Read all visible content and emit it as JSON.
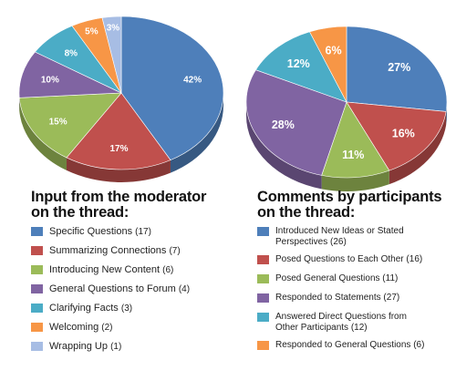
{
  "chart_data": [
    {
      "type": "pie",
      "title": "Input from the moderator\non the thread:",
      "legend_placement": "below",
      "slices": [
        {
          "label": "Specific Questions",
          "count": 17,
          "percent_label": "42%",
          "value": 42,
          "color": "#4e7fba"
        },
        {
          "label": "Summarizing Connections",
          "count": 7,
          "percent_label": "17%",
          "value": 17,
          "color": "#c0504d"
        },
        {
          "label": "Introducing New Content",
          "count": 6,
          "percent_label": "15%",
          "value": 15,
          "color": "#9bbb59"
        },
        {
          "label": "General Questions to Forum",
          "count": 4,
          "percent_label": "10%",
          "value": 10,
          "color": "#8064a2"
        },
        {
          "label": "Clarifying Facts",
          "count": 3,
          "percent_label": "8%",
          "value": 8,
          "color": "#4bacc6"
        },
        {
          "label": "Welcoming",
          "count": 2,
          "percent_label": "5%",
          "value": 5,
          "color": "#f79646"
        },
        {
          "label": "Wrapping Up",
          "count": 1,
          "percent_label": "3%",
          "value": 3,
          "color": "#a7bde4"
        }
      ]
    },
    {
      "type": "pie",
      "title": "Comments by participants\non the thread:",
      "legend_placement": "below",
      "slices": [
        {
          "label": "Introduced New Ideas or Stated\nPerspectives",
          "count": 26,
          "percent_label": "27%",
          "value": 27,
          "color": "#4e7fba"
        },
        {
          "label": "Posed Questions to Each Other",
          "count": 16,
          "percent_label": "16%",
          "value": 16,
          "color": "#c0504d"
        },
        {
          "label": "Posed General Questions",
          "count": 11,
          "percent_label": "11%",
          "value": 11,
          "color": "#9bbb59"
        },
        {
          "label": "Responded to Statements",
          "count": 27,
          "percent_label": "28%",
          "value": 28,
          "color": "#8064a2"
        },
        {
          "label": "Answered Direct Questions from\nOther Participants",
          "count": 12,
          "percent_label": "12%",
          "value": 12,
          "color": "#4bacc6"
        },
        {
          "label": "Responded to General Questions",
          "count": 6,
          "percent_label": "6%",
          "value": 6,
          "color": "#f79646"
        }
      ]
    }
  ]
}
